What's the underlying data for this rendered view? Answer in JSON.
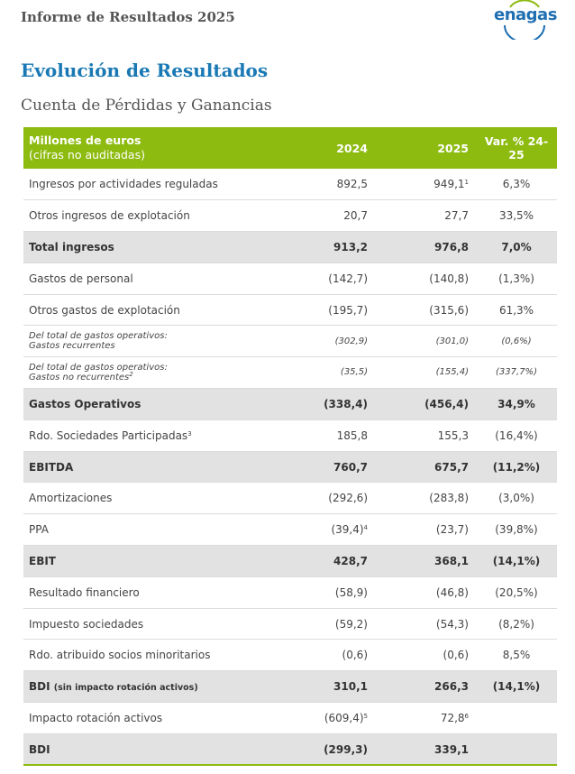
{
  "header": {
    "report_title": "Informe de Resultados 2025",
    "logo_text": "enagas"
  },
  "section": {
    "title": "Evolución de Resultados",
    "subtitle": "Cuenta de Pérdidas y Ganancias"
  },
  "table": {
    "head": {
      "label": "Millones de euros",
      "sublabel": "(cifras no auditadas)",
      "col_2024": "2024",
      "col_2025": "2025",
      "col_var": "Var. % 24-25"
    },
    "rows": {
      "r1": {
        "label": "Ingresos por actividades reguladas",
        "v2024": "892,5",
        "v2025": "949,1",
        "v2025_note": "1",
        "var": "6,3%"
      },
      "r2": {
        "label": "Otros ingresos de explotación",
        "v2024": "20,7",
        "v2025": "27,7",
        "var": "33,5%"
      },
      "r3": {
        "label": "Total ingresos",
        "v2024": "913,2",
        "v2025": "976,8",
        "var": "7,0%"
      },
      "r4": {
        "label": "Gastos de personal",
        "v2024": "(142,7)",
        "v2025": "(140,8)",
        "var": "(1,3%)"
      },
      "r5": {
        "label": "Otros gastos de explotación",
        "v2024": "(195,7)",
        "v2025": "(315,6)",
        "var": "61,3%"
      },
      "r6": {
        "label_line1": "Del total de gastos operativos:",
        "label_line2": "Gastos recurrentes",
        "v2024": "(302,9)",
        "v2025": "(301,0)",
        "var": "(0,6%)"
      },
      "r7": {
        "label_line1": "Del total de gastos operativos:",
        "label_line2": "Gastos no recurrentes",
        "label_note": "2",
        "v2024": "(35,5)",
        "v2025": "(155,4)",
        "var": "(337,7%)"
      },
      "r8": {
        "label": "Gastos Operativos",
        "v2024": "(338,4)",
        "v2025": "(456,4)",
        "var": "34,9%"
      },
      "r9": {
        "label": "Rdo. Sociedades Participadas",
        "label_note": "3",
        "v2024": "185,8",
        "v2025": "155,3",
        "var": "(16,4%)"
      },
      "r10": {
        "label": "EBITDA",
        "v2024": "760,7",
        "v2025": "675,7",
        "var": "(11,2%)"
      },
      "r11": {
        "label": "Amortizaciones",
        "v2024": "(292,6)",
        "v2025": "(283,8)",
        "var": "(3,0%)"
      },
      "r12": {
        "label": "PPA",
        "v2024": "(39,4)",
        "v2024_note": "4",
        "v2025": "(23,7)",
        "var": "(39,8%)"
      },
      "r13": {
        "label": "EBIT",
        "v2024": "428,7",
        "v2025": "368,1",
        "var": "(14,1%)"
      },
      "r14": {
        "label": "Resultado financiero",
        "v2024": "(58,9)",
        "v2025": "(46,8)",
        "var": "(20,5%)"
      },
      "r15": {
        "label": "Impuesto sociedades",
        "v2024": "(59,2)",
        "v2025": "(54,3)",
        "var": "(8,2%)"
      },
      "r16": {
        "label": "Rdo. atribuido socios minoritarios",
        "v2024": "(0,6)",
        "v2025": "(0,6)",
        "var": "8,5%"
      },
      "r17": {
        "label": "BDI",
        "label_small": "(sin impacto rotación activos)",
        "v2024": "310,1",
        "v2025": "266,3",
        "var": "(14,1%)"
      },
      "r18": {
        "label": "Impacto rotación activos",
        "v2024": "(609,4)",
        "v2024_note": "5",
        "v2025": "72,8",
        "v2025_note": "6",
        "var": ""
      },
      "r19": {
        "label": "BDI",
        "v2024": "(299,3)",
        "v2025": "339,1",
        "var": ""
      }
    }
  },
  "colors": {
    "accent_green": "#8dbb10",
    "title_blue": "#1a79b5",
    "total_row_bg": "#e2e2e2",
    "logo_blue": "#1f6fb2"
  }
}
